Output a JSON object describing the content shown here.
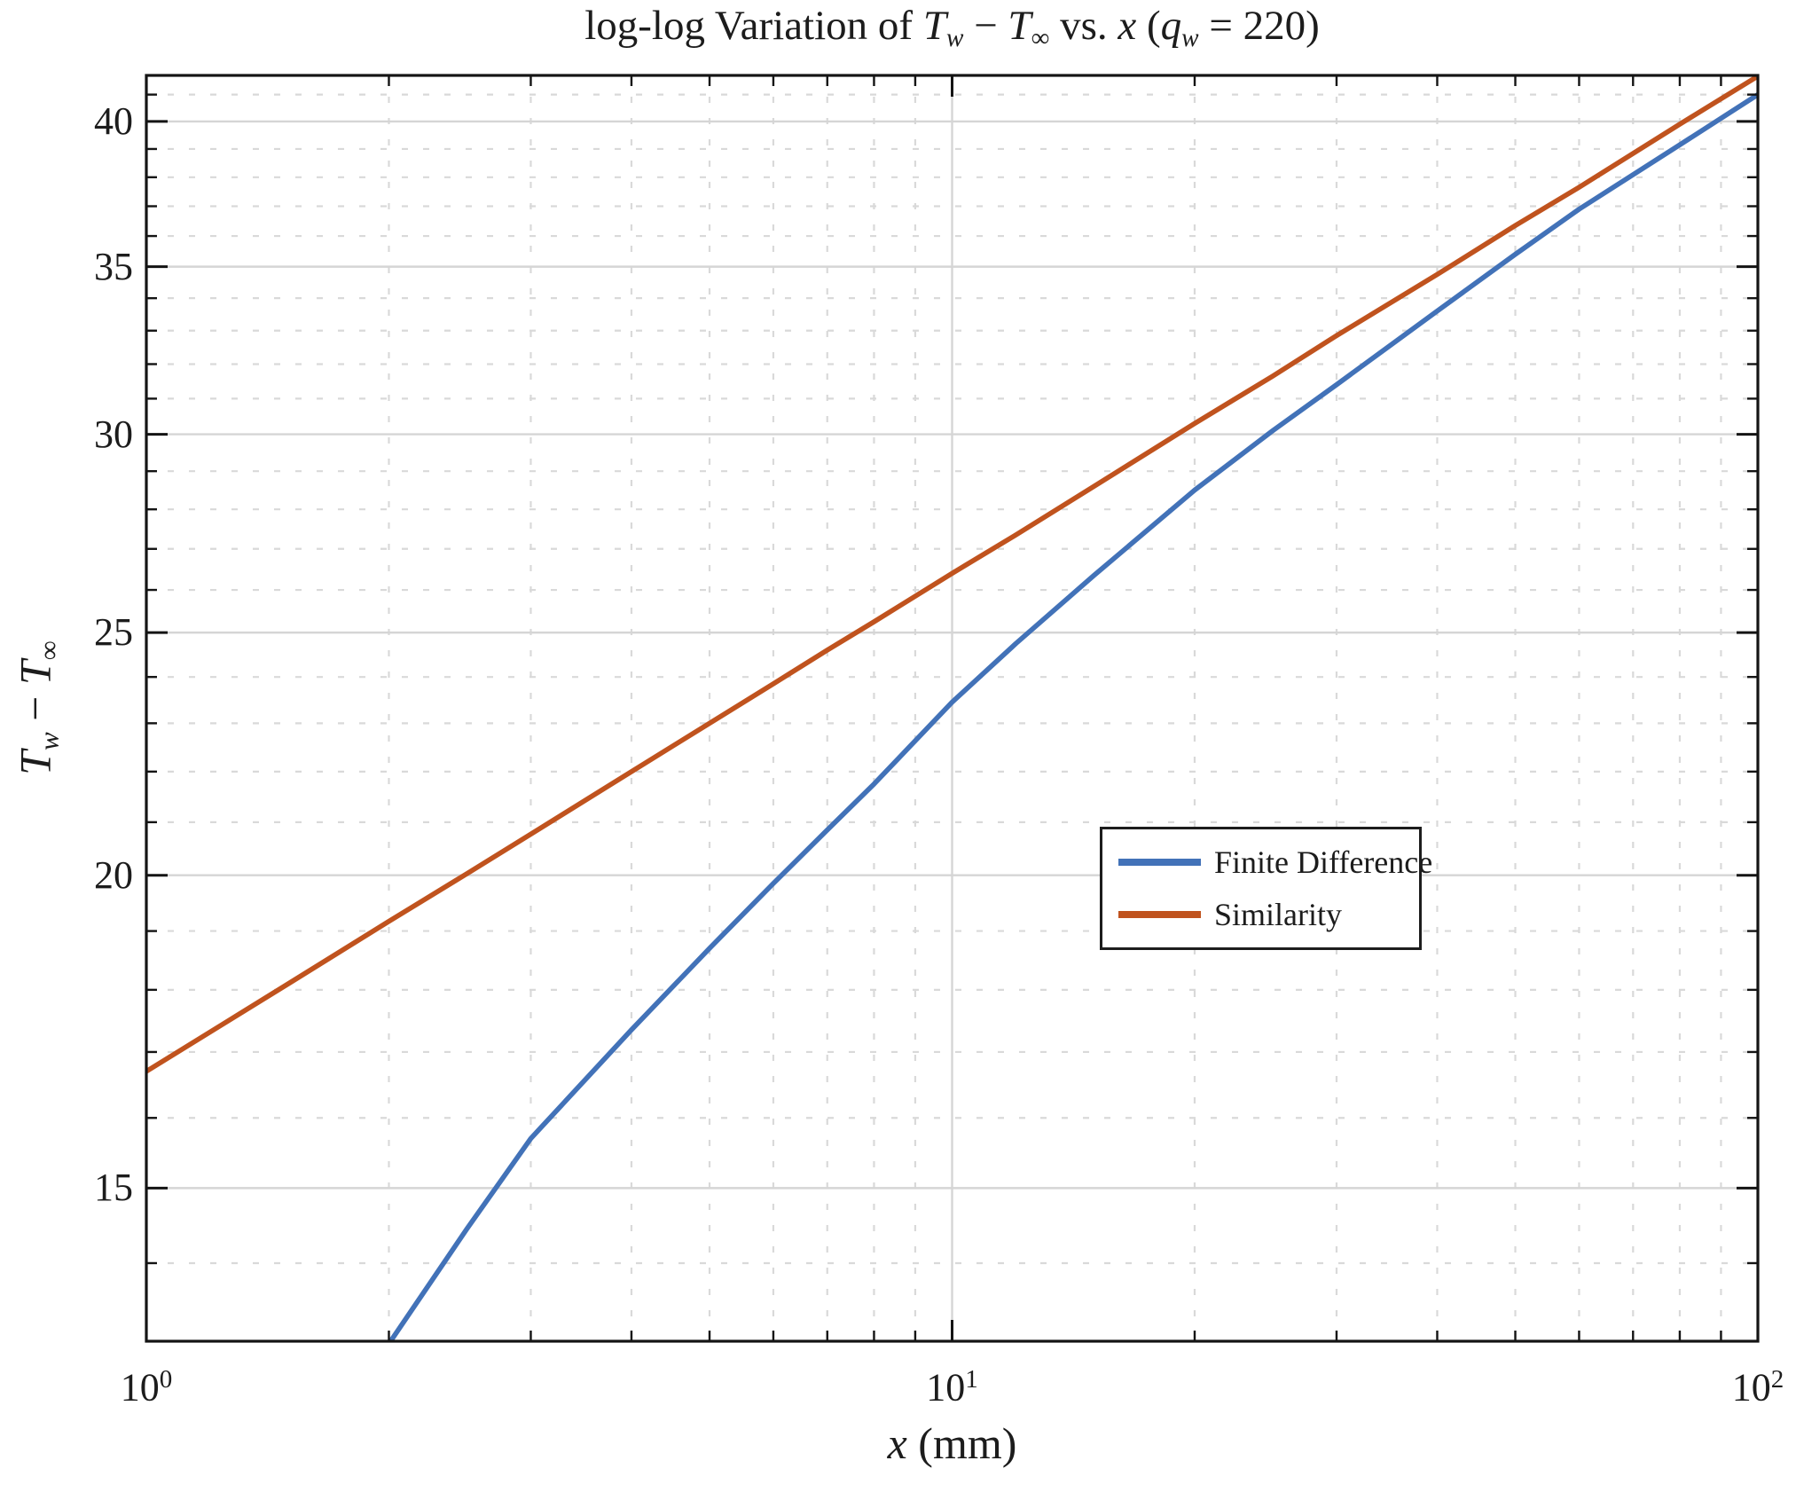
{
  "figure": {
    "title_segments": [
      {
        "t": "log-log Variation of ",
        "style": "up"
      },
      {
        "t": "T",
        "style": "it"
      },
      {
        "t": "w",
        "style": "itsub"
      },
      {
        "t": " − ",
        "style": "up"
      },
      {
        "t": "T",
        "style": "it"
      },
      {
        "t": "∞",
        "style": "sub"
      },
      {
        "t": " vs. ",
        "style": "up"
      },
      {
        "t": "x",
        "style": "it"
      },
      {
        "t": " (",
        "style": "up"
      },
      {
        "t": "q",
        "style": "it"
      },
      {
        "t": "w",
        "style": "itsub"
      },
      {
        "t": " = 220)",
        "style": "up"
      }
    ],
    "xlabel_segments": [
      {
        "t": "x",
        "style": "it"
      },
      {
        "t": " (mm)",
        "style": "up"
      }
    ],
    "ylabel_segments": [
      {
        "t": "T",
        "style": "it"
      },
      {
        "t": "w",
        "style": "itsub"
      },
      {
        "t": " − ",
        "style": "up"
      },
      {
        "t": "T",
        "style": "it"
      },
      {
        "t": "∞",
        "style": "sub"
      }
    ]
  },
  "axes": {
    "x": {
      "scale": "log",
      "min": 1,
      "max": 100,
      "major_ticks": [
        {
          "value": 1,
          "base": "10",
          "exp": "0"
        },
        {
          "value": 10,
          "base": "10",
          "exp": "1"
        },
        {
          "value": 100,
          "base": "10",
          "exp": "2"
        }
      ],
      "minor_ticks": [
        2,
        3,
        4,
        5,
        6,
        7,
        8,
        9,
        20,
        30,
        40,
        50,
        60,
        70,
        80,
        90
      ]
    },
    "y": {
      "scale": "log",
      "min": 13.03,
      "max": 41.73,
      "major_ticks": [
        {
          "value": 15,
          "label": "15"
        },
        {
          "value": 20,
          "label": "20"
        },
        {
          "value": 25,
          "label": "25"
        },
        {
          "value": 30,
          "label": "30"
        },
        {
          "value": 35,
          "label": "35"
        },
        {
          "value": 40,
          "label": "40"
        }
      ],
      "minor_ticks": [
        14,
        16,
        17,
        18,
        19,
        21,
        22,
        23,
        24,
        26,
        27,
        28,
        29,
        31,
        32,
        33,
        34,
        36,
        37,
        38,
        39,
        41
      ]
    }
  },
  "legend": {
    "items": [
      {
        "label": "Finite Difference",
        "series": 0
      },
      {
        "label": "Similarity",
        "series": 1
      }
    ]
  },
  "colors": {
    "finite_difference": "#4272b8",
    "similarity": "#c0531e",
    "grid_major": "#d5d5d5",
    "grid_minor": "#d9d9d9",
    "spine": "#141414",
    "tick": "#141414",
    "text": "#1c1c1c",
    "background": "#ffffff"
  },
  "chart_data": {
    "type": "line",
    "title": "log-log Variation of Tw − T∞ vs. x (qw = 220)",
    "xlabel": "x (mm)",
    "ylabel": "Tw − T∞",
    "xscale": "log",
    "yscale": "log",
    "xlim": [
      1,
      100
    ],
    "ylim": [
      13.0,
      41.7
    ],
    "grid": true,
    "legend_position": "center-right",
    "series": [
      {
        "name": "Finite Difference",
        "color_key": "finite_difference",
        "x": [
          1.9,
          2,
          2.5,
          3,
          4,
          5,
          6,
          7,
          8,
          10,
          12,
          15,
          20,
          25,
          30,
          40,
          50,
          60,
          80,
          100
        ],
        "y": [
          12.6,
          13.0,
          14.45,
          15.7,
          17.35,
          18.7,
          19.85,
          20.85,
          21.75,
          23.45,
          24.75,
          26.35,
          28.5,
          30.1,
          31.4,
          33.6,
          35.4,
          36.9,
          39.15,
          41.0
        ]
      },
      {
        "name": "Similarity",
        "color_key": "similarity",
        "x": [
          1,
          1.5,
          2,
          2.5,
          3,
          4,
          5,
          6,
          7,
          8,
          10,
          12,
          15,
          20,
          25,
          30,
          40,
          50,
          60,
          80,
          100
        ],
        "y": [
          16.7,
          18.1,
          19.17,
          20.03,
          20.77,
          22.0,
          23.0,
          23.85,
          24.6,
          25.25,
          26.4,
          27.35,
          28.6,
          30.3,
          31.65,
          32.85,
          34.75,
          36.35,
          37.65,
          39.9,
          41.7
        ]
      }
    ]
  }
}
